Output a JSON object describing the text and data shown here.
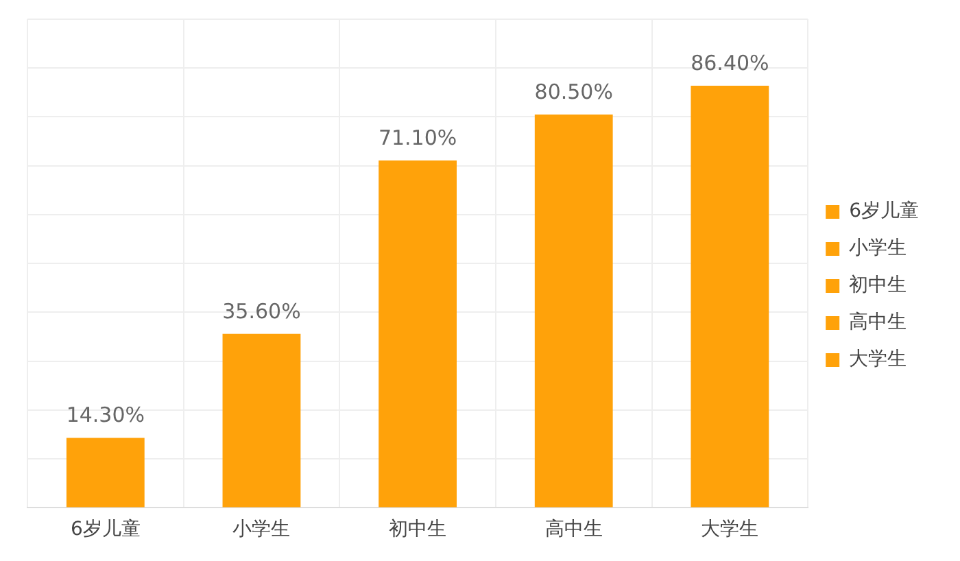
{
  "chart_data": {
    "type": "bar",
    "categories": [
      "6岁儿童",
      "小学生",
      "初中生",
      "高中生",
      "大学生"
    ],
    "series": [
      {
        "name": "6岁儿童",
        "color": "#ffa20a",
        "values": [
          14.3,
          null,
          null,
          null,
          null
        ],
        "value_labels": [
          "14.30%",
          null,
          null,
          null,
          null
        ]
      },
      {
        "name": "小学生",
        "color": "#ffa20a",
        "values": [
          null,
          35.6,
          null,
          null,
          null
        ],
        "value_labels": [
          null,
          "35.60%",
          null,
          null,
          null
        ]
      },
      {
        "name": "初中生",
        "color": "#ffa20a",
        "values": [
          null,
          null,
          71.1,
          null,
          null
        ],
        "value_labels": [
          null,
          null,
          "71.10%",
          null,
          null
        ]
      },
      {
        "name": "高中生",
        "color": "#ffa20a",
        "values": [
          null,
          null,
          null,
          80.5,
          null
        ],
        "value_labels": [
          null,
          null,
          null,
          "80.50%",
          null
        ]
      },
      {
        "name": "大学生",
        "color": "#ffa20a",
        "values": [
          null,
          null,
          null,
          null,
          86.4
        ],
        "value_labels": [
          null,
          null,
          null,
          null,
          "86.40%"
        ]
      }
    ],
    "ylim": [
      0,
      100
    ],
    "yticks": [
      {
        "value": 0,
        "label": null
      },
      {
        "value": 10,
        "label": null
      },
      {
        "value": 20,
        "label": null
      },
      {
        "value": 30,
        "label": null
      },
      {
        "value": 40,
        "label": null
      },
      {
        "value": 50,
        "label": null
      },
      {
        "value": 60,
        "label": null
      },
      {
        "value": 70,
        "label": null
      },
      {
        "value": 80,
        "label": null
      },
      {
        "value": 90,
        "label": null
      },
      {
        "value": 100,
        "label": null
      }
    ],
    "tick_labels": "x",
    "grid": true,
    "legend": "right"
  }
}
